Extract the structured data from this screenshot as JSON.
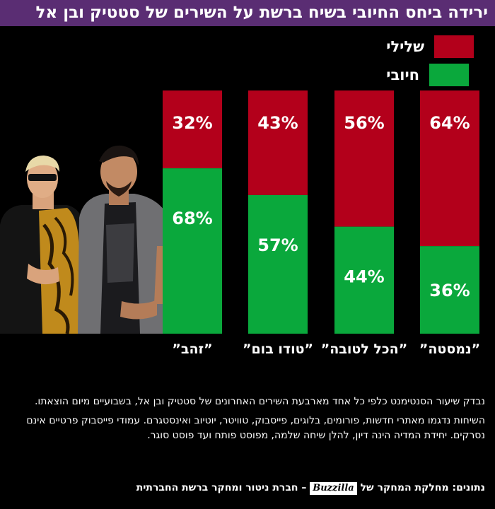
{
  "title": "ירידה ביחס החיובי בשיח ברשת על השירים של סטטיק ובן אל",
  "legend": {
    "negative": "שלילי",
    "positive": "חיובי"
  },
  "colors": {
    "negative": "#b3001b",
    "positive": "#0aa83c",
    "title_bar": "#5a2d73"
  },
  "chart_data": {
    "type": "bar",
    "stacked": true,
    "categories": [
      "”נמסטה”",
      "”הכל לטובה”",
      "”טודו בום”",
      "”זהב”"
    ],
    "series": [
      {
        "name": "חיובי",
        "values": [
          36,
          44,
          57,
          68
        ]
      },
      {
        "name": "שלילי",
        "values": [
          64,
          56,
          43,
          32
        ]
      }
    ],
    "value_labels": {
      "positive": [
        "36%",
        "44%",
        "57%",
        "68%"
      ],
      "negative": [
        "64%",
        "56%",
        "43%",
        "32%"
      ]
    },
    "ylim": [
      0,
      100
    ],
    "grid": false,
    "legend_position": "top-right"
  },
  "notes": {
    "p1": "נבדק שיעור הסנטימנט כלפי כל אחד מארבעת השירים האחרונים של סטטיק ובן אל, בשבועיים מיום הוצאתו.",
    "p2": "השיחות נדגמו מאתרי חדשות, פורומים, בלוגים, פייסבוק, טוויטר, יוטיוב ואינסטגרם. עמודי פייסבוק פרטיים אינם נסרקים. יחידת המדיה הינה דיון, להלן שיחה שלמה, מפוסט פותח ועד פוסט סוגר."
  },
  "source": {
    "prefix": "נתונים: מחלקת המחקר של",
    "brand": "Buzzilla",
    "suffix": "– חברת ניטור ומחקר ברשת החברתית"
  }
}
